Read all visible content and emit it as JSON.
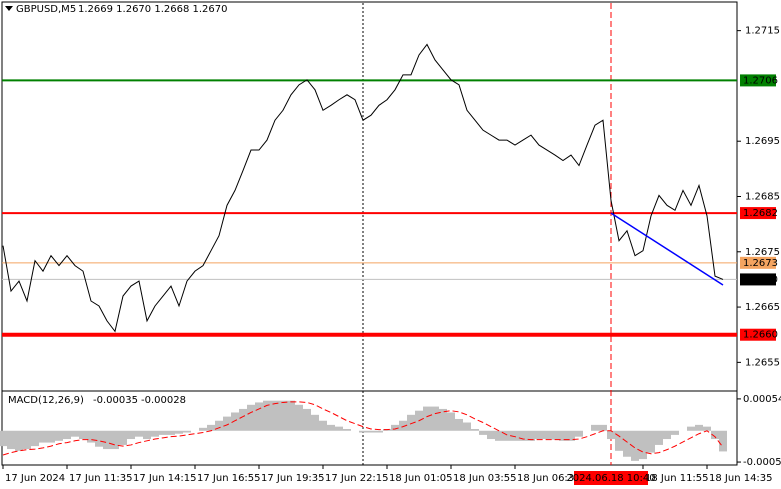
{
  "chart_data": [
    {
      "type": "line",
      "title": "GBPUSD,M5",
      "ohlc": "1.2669 1.2670 1.2668 1.2670",
      "color": "#000000",
      "categories": [
        "17 Jun 2024",
        null,
        null,
        null,
        null,
        null,
        null,
        null,
        "17 Jun 11:35",
        null,
        null,
        null,
        null,
        null,
        null,
        null,
        "17 Jun 14:15",
        null,
        null,
        null,
        null,
        null,
        null,
        null,
        "17 Jun 16:55",
        null,
        null,
        null,
        null,
        null,
        null,
        null,
        "17 Jun 19:35",
        null,
        null,
        null,
        null,
        null,
        null,
        null,
        "17 Jun 22:15",
        null,
        null,
        null,
        null,
        null,
        null,
        null,
        "18 Jun 01:05",
        null,
        null,
        null,
        null,
        null,
        null,
        null,
        "18 Jun 03:55",
        null,
        null,
        null,
        null,
        null,
        null,
        null,
        "18 Jun 06:35",
        null,
        null,
        null,
        null,
        null,
        null,
        null,
        null,
        null,
        null,
        null,
        "2024.06.18 10:40",
        null,
        null,
        null,
        "18 Jun 11:55",
        null,
        null,
        null,
        null,
        null,
        null,
        null,
        "18 Jun 14:35",
        null,
        null
      ],
      "values": [
        1.26761,
        1.26679,
        1.26697,
        1.26661,
        1.26734,
        1.26715,
        1.26743,
        1.26725,
        1.26743,
        1.26725,
        1.26715,
        1.26661,
        1.26652,
        1.26625,
        1.26606,
        1.2667,
        1.26688,
        1.26697,
        1.26625,
        1.26652,
        1.2667,
        1.26688,
        1.26652,
        1.26697,
        1.26715,
        1.26725,
        1.26752,
        1.26779,
        1.26834,
        1.26861,
        1.26897,
        1.26934,
        1.26934,
        1.26952,
        1.26988,
        1.27006,
        1.27034,
        1.27052,
        1.27061,
        1.27043,
        1.27006,
        1.27015,
        1.27025,
        1.27034,
        1.27025,
        1.26988,
        1.26997,
        1.27015,
        1.27025,
        1.27043,
        1.2707,
        1.2707,
        1.27106,
        1.27125,
        1.27097,
        1.27079,
        1.27061,
        1.27052,
        1.27006,
        1.26988,
        1.2697,
        1.26961,
        1.26952,
        1.26952,
        1.26943,
        1.26952,
        1.26961,
        1.26943,
        1.26934,
        1.26925,
        1.26915,
        1.26925,
        1.26906,
        1.26943,
        1.26979,
        1.26988,
        1.26843,
        1.2677,
        1.26788,
        1.26743,
        1.26752,
        1.26815,
        1.26852,
        1.26834,
        1.26825,
        1.26861,
        1.26834,
        1.2687,
        1.26815,
        1.26706,
        1.267
      ],
      "ylim": [
        1.265,
        1.272
      ],
      "yticks": [
        1.2655,
        1.2665,
        1.2675,
        1.2685,
        1.2695,
        1.2715
      ],
      "levels": [
        {
          "value": 1.2706,
          "color": "#008000",
          "text_color": "#000000",
          "width": 2
        },
        {
          "value": 1.2682,
          "color": "#ff0000",
          "text_color": "#ffffff",
          "width": 2
        },
        {
          "value": 1.2673,
          "color": "#f4a460",
          "text_color": "#ffffff",
          "width": 1
        },
        {
          "value": 1.267,
          "label": "1.2670",
          "color": "#c0c0c0",
          "box_color": "#000000",
          "text_color": "#ffffff",
          "width": 1
        },
        {
          "value": 1.266,
          "label": "1.2660",
          "color": "#ff0000",
          "text_color": "#ffffff",
          "width": 4
        }
      ],
      "vlines": [
        {
          "index": 45,
          "color": "#000000",
          "style": "dotted"
        },
        {
          "index": 76,
          "color": "#ff0000",
          "style": "dashed",
          "highlight_label": true
        }
      ],
      "trendline": {
        "from": [
          76,
          1.2682
        ],
        "to": [
          90,
          1.2669
        ],
        "color": "#0000ff"
      }
    },
    {
      "type": "macd",
      "title": "MACD(12,26,9)",
      "series": [
        {
          "color": "#c0c0c0",
          "style": "histogram",
          "values": [
            -0.00026,
            -0.00031,
            -0.00034,
            -0.00031,
            -0.00026,
            -0.0002,
            -0.0002,
            -0.00017,
            -0.00014,
            -0.0001,
            -0.00014,
            -0.0002,
            -0.00027,
            -0.00031,
            -0.00031,
            -0.00024,
            -0.00014,
            -0.0001,
            -0.00014,
            -0.0001,
            -7e-05,
            -7e-05,
            -5e-05,
            -3e-05,
            0,
            5e-05,
            0.0001,
            0.00017,
            0.00024,
            0.00031,
            0.00037,
            0.00044,
            0.00048,
            0.00051,
            0.00051,
            0.00051,
            0.00051,
            0.00044,
            0.00037,
            0.00027,
            0.00017,
            0.0001,
            7e-05,
            3e-05,
            0,
            -3e-05,
            -3e-05,
            -3e-05,
            3e-05,
            0.0001,
            0.00017,
            0.00027,
            0.00034,
            0.00041,
            0.00041,
            0.00037,
            0.00031,
            0.0002,
            0.00014,
            3e-05,
            -7e-05,
            -0.00014,
            -0.00017,
            -0.00017,
            -0.00017,
            -0.00017,
            -0.00017,
            -0.00014,
            -0.00014,
            -0.00015,
            -0.00017,
            -0.00017,
            -0.0001,
            0,
            0.0001,
            0.0001,
            -0.00014,
            -0.00034,
            -0.00044,
            -0.00051,
            -0.00048,
            -0.00037,
            -0.00024,
            -0.00014,
            -7e-05,
            0,
            7e-05,
            0.0001,
            7e-05,
            -0.00014,
            -0.00035
          ]
        },
        {
          "color": "#ff0000",
          "style": "dashed",
          "values": [
            -0.00041,
            -0.00037,
            -0.00034,
            -0.00032,
            -0.00031,
            -0.00029,
            -0.00026,
            -0.00022,
            -0.0002,
            -0.00017,
            -0.00015,
            -0.00015,
            -0.00017,
            -0.0002,
            -0.00024,
            -0.00026,
            -0.00024,
            -0.0002,
            -0.00017,
            -0.00014,
            -0.00012,
            -0.0001,
            -9e-05,
            -7e-05,
            -5e-05,
            -3e-05,
            0,
            5e-05,
            0.0001,
            0.00017,
            0.00024,
            0.00031,
            0.00037,
            0.00043,
            0.00046,
            0.00048,
            0.00049,
            0.00049,
            0.00048,
            0.00044,
            0.00037,
            0.00031,
            0.00024,
            0.00017,
            0.00012,
            7e-05,
            3e-05,
            2e-05,
            2e-05,
            3e-05,
            7e-05,
            0.00012,
            0.00017,
            0.00024,
            0.00029,
            0.00032,
            0.00034,
            0.00032,
            0.00027,
            0.0002,
            0.00014,
            7e-05,
            0,
            -7e-05,
            -0.0001,
            -0.00014,
            -0.00015,
            -0.00015,
            -0.00015,
            -0.00015,
            -0.00015,
            -0.00015,
            -0.00014,
            -0.0001,
            -5e-05,
            0,
            0,
            -9e-05,
            -0.00019,
            -0.00029,
            -0.00036,
            -0.00039,
            -0.00037,
            -0.00032,
            -0.00026,
            -0.00019,
            -0.00012,
            -5e-05,
            0,
            -0.0001,
            -0.00028
          ]
        }
      ],
      "ylim": [
        -0.00058,
        0.00064
      ],
      "yticks": [
        -0.00053,
        0.00054
      ]
    }
  ]
}
